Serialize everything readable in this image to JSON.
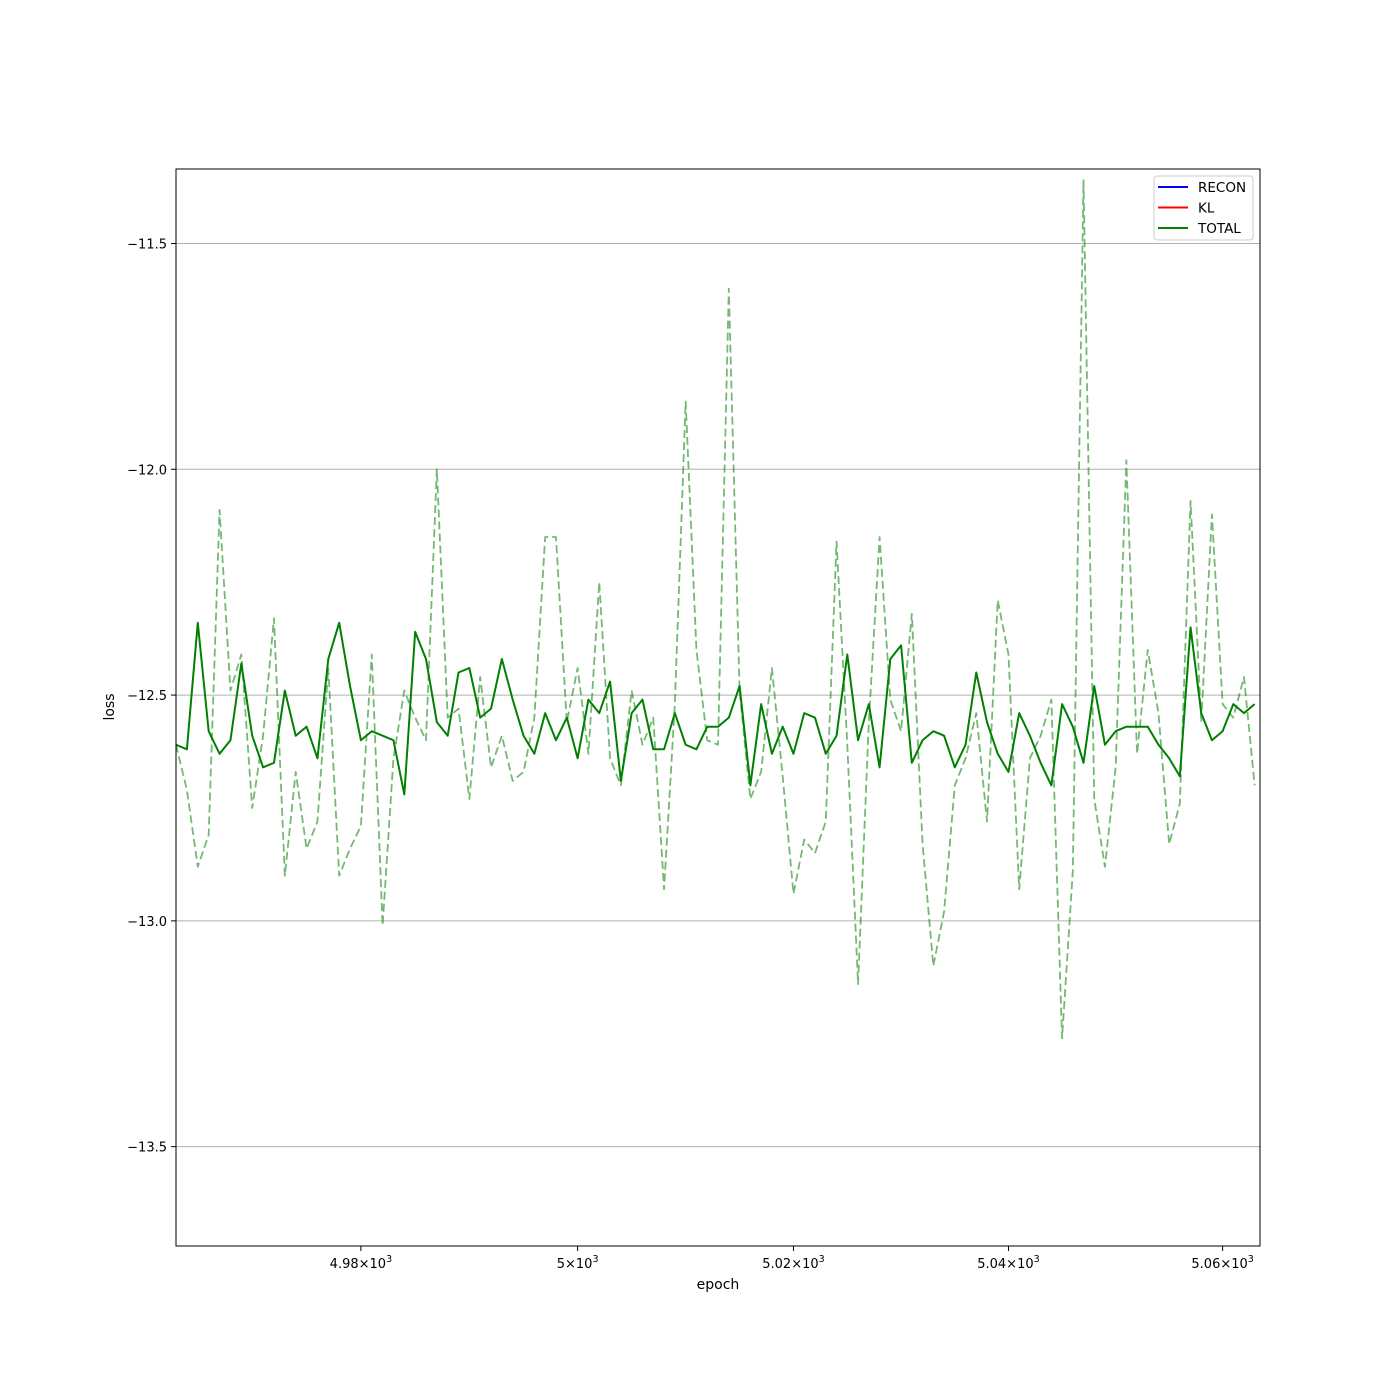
{
  "chart_data": {
    "type": "line",
    "xlabel": "epoch",
    "ylabel": "loss",
    "xscale": "log",
    "xlim": [
      4963,
      5063.5
    ],
    "ylim": [
      -13.72,
      -11.335
    ],
    "grid": "y-major",
    "legend_position": "top-right",
    "x_ticks": [
      {
        "value": 4980,
        "label": "4.98×10",
        "exp": "3"
      },
      {
        "value": 5000,
        "label": "5×10",
        "exp": "3"
      },
      {
        "value": 5020,
        "label": "5.02×10",
        "exp": "3"
      },
      {
        "value": 5040,
        "label": "5.04×10",
        "exp": "3"
      },
      {
        "value": 5060,
        "label": "5.06×10",
        "exp": "3"
      }
    ],
    "y_ticks": [
      {
        "value": -11.5,
        "label": "−11.5"
      },
      {
        "value": -12.0,
        "label": "−12.0"
      },
      {
        "value": -12.5,
        "label": "−12.5"
      },
      {
        "value": -13.0,
        "label": "−13.0"
      },
      {
        "value": -13.5,
        "label": "−13.5"
      }
    ],
    "x_start": 4963,
    "x_step": 1,
    "series": [
      {
        "name": "RECON",
        "color": "#0000ff",
        "style": "solid",
        "values": []
      },
      {
        "name": "KL",
        "color": "#ff0000",
        "style": "solid",
        "values": []
      },
      {
        "name": "TOTAL",
        "color": "#008000",
        "style": "solid",
        "values": [
          -12.61,
          -12.62,
          -12.34,
          -12.58,
          -12.63,
          -12.6,
          -12.43,
          -12.59,
          -12.66,
          -12.65,
          -12.49,
          -12.59,
          -12.57,
          -12.64,
          -12.42,
          -12.34,
          -12.48,
          -12.6,
          -12.58,
          -12.59,
          -12.6,
          -12.72,
          -12.36,
          -12.42,
          -12.56,
          -12.59,
          -12.45,
          -12.44,
          -12.55,
          -12.53,
          -12.42,
          -12.51,
          -12.59,
          -12.63,
          -12.54,
          -12.6,
          -12.55,
          -12.64,
          -12.51,
          -12.54,
          -12.47,
          -12.69,
          -12.54,
          -12.51,
          -12.62,
          -12.62,
          -12.54,
          -12.61,
          -12.62,
          -12.57,
          -12.57,
          -12.55,
          -12.48,
          -12.7,
          -12.52,
          -12.63,
          -12.57,
          -12.63,
          -12.54,
          -12.55,
          -12.63,
          -12.59,
          -12.41,
          -12.6,
          -12.52,
          -12.66,
          -12.42,
          -12.39,
          -12.65,
          -12.6,
          -12.58,
          -12.59,
          -12.66,
          -12.61,
          -12.45,
          -12.56,
          -12.63,
          -12.67,
          -12.54,
          -12.59,
          -12.65,
          -12.7,
          -12.52,
          -12.57,
          -12.65,
          -12.48,
          -12.61,
          -12.58,
          -12.57,
          -12.57,
          -12.57,
          -12.61,
          -12.64,
          -12.68,
          -12.35,
          -12.54,
          -12.6,
          -12.58,
          -12.52,
          -12.54,
          -12.52
        ]
      },
      {
        "name": "",
        "color": "#008000",
        "style": "dashed",
        "opacity": 0.55,
        "values": [
          -12.61,
          -12.71,
          -12.88,
          -12.81,
          -12.09,
          -12.49,
          -12.41,
          -12.75,
          -12.59,
          -12.33,
          -12.9,
          -12.67,
          -12.84,
          -12.78,
          -12.44,
          -12.9,
          -12.84,
          -12.79,
          -12.41,
          -13.01,
          -12.64,
          -12.49,
          -12.55,
          -12.6,
          -12.0,
          -12.55,
          -12.53,
          -12.73,
          -12.46,
          -12.66,
          -12.59,
          -12.69,
          -12.67,
          -12.55,
          -12.15,
          -12.15,
          -12.56,
          -12.44,
          -12.63,
          -12.25,
          -12.64,
          -12.7,
          -12.49,
          -12.61,
          -12.55,
          -12.93,
          -12.52,
          -11.85,
          -12.4,
          -12.6,
          -12.61,
          -11.6,
          -12.49,
          -12.73,
          -12.67,
          -12.44,
          -12.68,
          -12.94,
          -12.82,
          -12.85,
          -12.78,
          -12.16,
          -12.61,
          -13.14,
          -12.56,
          -12.15,
          -12.51,
          -12.58,
          -12.32,
          -12.83,
          -13.1,
          -12.98,
          -12.7,
          -12.64,
          -12.54,
          -12.78,
          -12.29,
          -12.41,
          -12.93,
          -12.64,
          -12.59,
          -12.51,
          -13.26,
          -12.89,
          -11.36,
          -12.73,
          -12.88,
          -12.66,
          -11.98,
          -12.63,
          -12.4,
          -12.54,
          -12.83,
          -12.74,
          -12.07,
          -12.56,
          -12.1,
          -12.52,
          -12.55,
          -12.46,
          -12.7
        ]
      }
    ]
  }
}
